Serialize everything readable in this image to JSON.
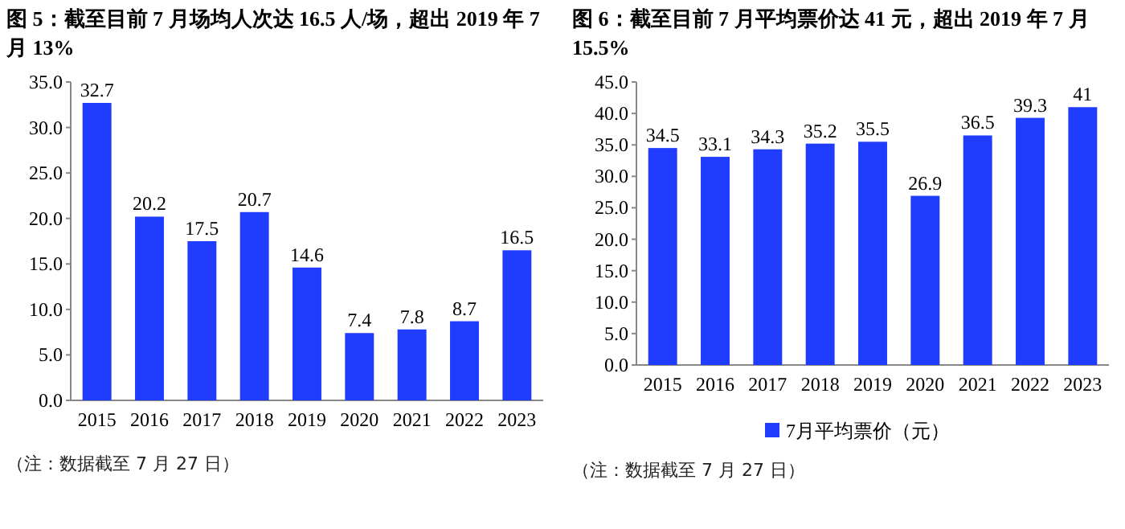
{
  "chart_data": [
    {
      "type": "bar",
      "title": "图 5：截至目前 7 月场均人次达 16.5 人/场，超出 2019 年 7 月 13%",
      "categories": [
        "2015",
        "2016",
        "2017",
        "2018",
        "2019",
        "2020",
        "2021",
        "2022",
        "2023"
      ],
      "values": [
        32.7,
        20.2,
        17.5,
        20.7,
        14.6,
        7.4,
        7.8,
        8.7,
        16.5
      ],
      "color": "#1f3cff",
      "data_labels": true,
      "ylim": [
        0,
        35
      ],
      "yticks": [
        {
          "value": 0,
          "label": "0.0"
        },
        {
          "value": 5,
          "label": "5.0"
        },
        {
          "value": 10,
          "label": "10.0"
        },
        {
          "value": 15,
          "label": "15.0"
        },
        {
          "value": 20,
          "label": "20.0"
        },
        {
          "value": 25,
          "label": "25.0"
        },
        {
          "value": 30,
          "label": "30.0"
        },
        {
          "value": 35,
          "label": "35.0"
        }
      ],
      "grid": false,
      "legend": false,
      "annotations": [
        "（注：数据截至 7 月 27 日）"
      ]
    },
    {
      "type": "bar",
      "title": "图 6：截至目前 7 月平均票价达 41 元，超出 2019 年 7 月 15.5%",
      "categories": [
        "2015",
        "2016",
        "2017",
        "2018",
        "2019",
        "2020",
        "2021",
        "2022",
        "2023"
      ],
      "series": [
        {
          "name": "7月平均票价（元）",
          "color": "#1f3cff",
          "values": [
            34.5,
            33.1,
            34.3,
            35.2,
            35.5,
            26.9,
            36.5,
            39.3,
            41
          ]
        }
      ],
      "data_labels": true,
      "ylim": [
        0,
        45
      ],
      "yticks": [
        {
          "value": 0,
          "label": "0.0"
        },
        {
          "value": 5,
          "label": "5.0"
        },
        {
          "value": 10,
          "label": "10.0"
        },
        {
          "value": 15,
          "label": "15.0"
        },
        {
          "value": 20,
          "label": "20.0"
        },
        {
          "value": 25,
          "label": "25.0"
        },
        {
          "value": 30,
          "label": "30.0"
        },
        {
          "value": 35,
          "label": "35.0"
        },
        {
          "value": 40,
          "label": "40.0"
        },
        {
          "value": 45,
          "label": "45.0"
        }
      ],
      "grid": false,
      "legend": "bottom",
      "annotations": [
        "（注：数据截至 7 月 27 日）"
      ]
    }
  ]
}
